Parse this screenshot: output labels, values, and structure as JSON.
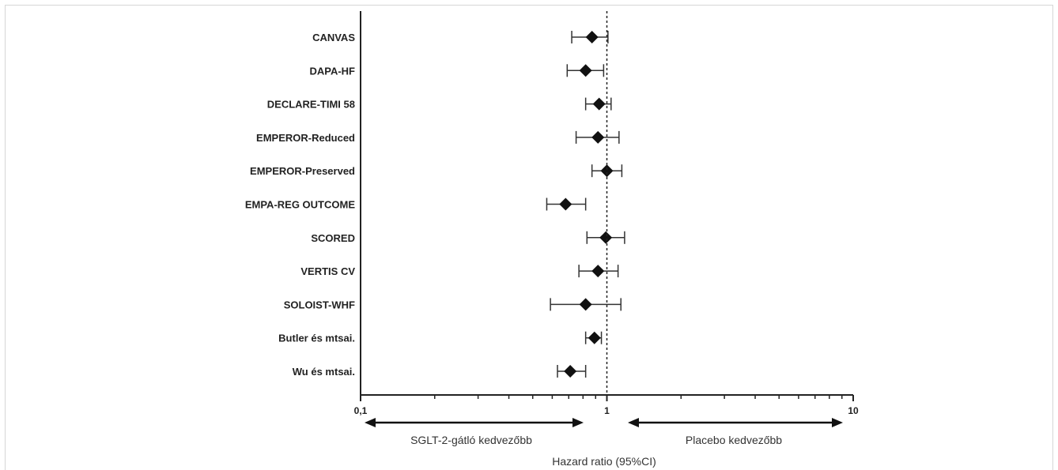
{
  "chart_data": {
    "type": "forest",
    "title": "",
    "xlabel": "Hazard ratio (95%CI)",
    "xscale": "log",
    "xlim": [
      0.1,
      10
    ],
    "xticks": [
      "0,1",
      "1",
      "10"
    ],
    "reference_line": 1,
    "studies": [
      {
        "name": "CANVAS",
        "hr": 0.87,
        "lo": 0.72,
        "hi": 1.01
      },
      {
        "name": "DAPA-HF",
        "hr": 0.82,
        "lo": 0.69,
        "hi": 0.97
      },
      {
        "name": "DECLARE-TIMI 58",
        "hr": 0.93,
        "lo": 0.82,
        "hi": 1.04
      },
      {
        "name": "EMPEROR-Reduced",
        "hr": 0.92,
        "lo": 0.75,
        "hi": 1.12
      },
      {
        "name": "EMPEROR-Preserved",
        "hr": 1.0,
        "lo": 0.87,
        "hi": 1.15
      },
      {
        "name": "EMPA-REG OUTCOME",
        "hr": 0.68,
        "lo": 0.57,
        "hi": 0.82
      },
      {
        "name": "SCORED",
        "hr": 0.99,
        "lo": 0.83,
        "hi": 1.18
      },
      {
        "name": "VERTIS CV",
        "hr": 0.92,
        "lo": 0.77,
        "hi": 1.11
      },
      {
        "name": "SOLOIST-WHF",
        "hr": 0.82,
        "lo": 0.59,
        "hi": 1.14
      },
      {
        "name": "Butler és mtsai.",
        "hr": 0.89,
        "lo": 0.82,
        "hi": 0.95
      },
      {
        "name": "Wu és mtsai.",
        "hr": 0.71,
        "lo": 0.63,
        "hi": 0.82
      }
    ],
    "annotations": {
      "left": "SGLT-2-gátló kedvezőbb",
      "right": "Placebo kedvezőbb"
    }
  }
}
